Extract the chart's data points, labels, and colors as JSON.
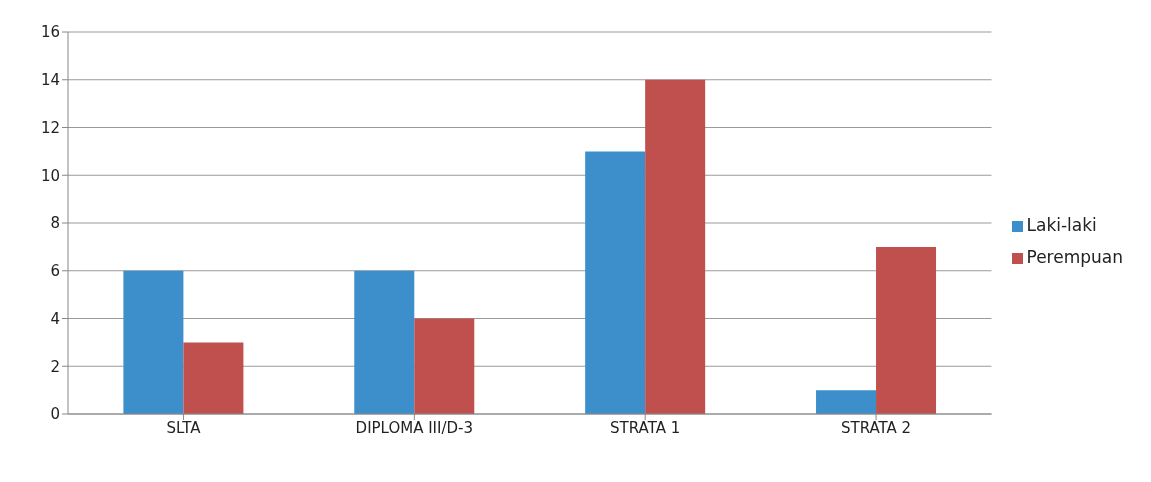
{
  "chart_data": {
    "type": "bar",
    "categories": [
      "SLTA",
      "DIPLOMA III/D-3",
      "STRATA 1",
      "STRATA 2"
    ],
    "series": [
      {
        "name": "Laki-laki",
        "color": "#3c8fcb",
        "values": [
          6,
          6,
          11,
          1
        ]
      },
      {
        "name": "Perempuan",
        "color": "#c0504d",
        "values": [
          3,
          4,
          14,
          7
        ]
      }
    ],
    "ylim": [
      0,
      16
    ],
    "yticks": [
      0,
      2,
      4,
      6,
      8,
      10,
      12,
      14,
      16
    ],
    "grid": "y",
    "legend": "right"
  }
}
